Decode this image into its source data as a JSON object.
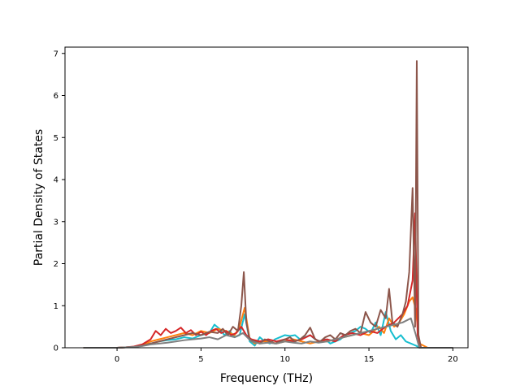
{
  "chart_data": {
    "type": "line",
    "title": "",
    "xlabel": "Frequency (THz)",
    "ylabel": "Partial Density of States",
    "xlim": [
      -3.1,
      20.9
    ],
    "ylim": [
      0,
      7.15
    ],
    "xticks": [
      0,
      5,
      10,
      15,
      20
    ],
    "yticks": [
      0,
      1,
      2,
      3,
      4,
      5,
      6,
      7
    ],
    "grid": false,
    "legend": "none",
    "series": [
      {
        "color": "#17becf",
        "x": [
          -2,
          0,
          0.5,
          1,
          1.5,
          2,
          2.5,
          3,
          3.5,
          4,
          4.5,
          5,
          5.5,
          5.8,
          6.1,
          6.4,
          6.7,
          7,
          7.3,
          7.6,
          7.9,
          8.2,
          8.5,
          8.8,
          9.1,
          9.4,
          9.7,
          10,
          10.3,
          10.6,
          10.9,
          11.2,
          11.5,
          11.8,
          12.1,
          12.4,
          12.7,
          13,
          13.3,
          13.6,
          13.9,
          14.2,
          14.5,
          14.8,
          15.1,
          15.4,
          15.7,
          16,
          16.3,
          16.6,
          16.9,
          17.2,
          17.5,
          17.8,
          18,
          18.5,
          20
        ],
        "y": [
          0,
          0,
          0.01,
          0.02,
          0.05,
          0.1,
          0.15,
          0.18,
          0.2,
          0.25,
          0.22,
          0.3,
          0.35,
          0.55,
          0.45,
          0.3,
          0.4,
          0.25,
          0.3,
          0.8,
          0.15,
          0.05,
          0.25,
          0.15,
          0.1,
          0.2,
          0.25,
          0.3,
          0.28,
          0.3,
          0.2,
          0.25,
          0.3,
          0.2,
          0.15,
          0.2,
          0.1,
          0.15,
          0.2,
          0.3,
          0.35,
          0.4,
          0.5,
          0.45,
          0.35,
          0.6,
          0.3,
          0.85,
          0.4,
          0.2,
          0.3,
          0.15,
          0.1,
          0.05,
          0,
          0,
          0
        ]
      },
      {
        "color": "#ff7f0e",
        "x": [
          -2,
          0,
          0.5,
          1,
          1.5,
          2,
          2.5,
          3,
          3.5,
          4,
          4.5,
          5,
          5.5,
          6,
          6.5,
          7,
          7.3,
          7.6,
          7.9,
          8.2,
          8.5,
          9,
          9.5,
          10,
          10.5,
          11,
          11.5,
          12,
          12.5,
          13,
          13.5,
          14,
          14.5,
          15,
          15.3,
          15.6,
          15.9,
          16.2,
          16.5,
          16.8,
          17.1,
          17.4,
          17.6,
          17.8,
          18,
          18.5,
          20
        ],
        "y": [
          0,
          0,
          0.01,
          0.02,
          0.05,
          0.15,
          0.2,
          0.25,
          0.3,
          0.35,
          0.3,
          0.4,
          0.35,
          0.45,
          0.4,
          0.3,
          0.5,
          0.95,
          0.2,
          0.1,
          0.15,
          0.15,
          0.1,
          0.15,
          0.2,
          0.15,
          0.1,
          0.15,
          0.15,
          0.2,
          0.25,
          0.3,
          0.35,
          0.3,
          0.4,
          0.5,
          0.35,
          0.7,
          0.5,
          0.6,
          0.8,
          1.1,
          1.2,
          0.9,
          0.1,
          0,
          0
        ]
      },
      {
        "color": "#d62728",
        "x": [
          -2,
          0,
          0.5,
          1,
          1.5,
          2,
          2.3,
          2.6,
          2.9,
          3.2,
          3.5,
          3.8,
          4.1,
          4.4,
          4.7,
          5,
          5.3,
          5.6,
          5.9,
          6.2,
          6.5,
          6.8,
          7.1,
          7.4,
          7.7,
          8,
          8.5,
          9,
          9.5,
          10,
          10.5,
          11,
          11.5,
          12,
          12.5,
          13,
          13.5,
          14,
          14.5,
          15,
          15.5,
          16,
          16.5,
          17,
          17.3,
          17.6,
          17.75,
          17.9,
          18.1,
          18.5,
          20
        ],
        "y": [
          0,
          0,
          0.01,
          0.03,
          0.08,
          0.2,
          0.4,
          0.3,
          0.45,
          0.35,
          0.4,
          0.48,
          0.35,
          0.42,
          0.3,
          0.38,
          0.3,
          0.4,
          0.45,
          0.35,
          0.4,
          0.3,
          0.35,
          0.5,
          0.3,
          0.2,
          0.15,
          0.2,
          0.15,
          0.2,
          0.15,
          0.2,
          0.3,
          0.15,
          0.2,
          0.15,
          0.3,
          0.35,
          0.3,
          0.4,
          0.35,
          0.5,
          0.6,
          0.8,
          1.0,
          1.6,
          3.2,
          0.3,
          0,
          0,
          0
        ]
      },
      {
        "color": "#8c564b",
        "x": [
          -2,
          0,
          0.5,
          1,
          1.5,
          2,
          2.5,
          3,
          3.5,
          4,
          4.5,
          5,
          5.5,
          6,
          6.3,
          6.6,
          6.9,
          7.2,
          7.4,
          7.55,
          7.7,
          7.9,
          8.2,
          8.5,
          8.8,
          9.1,
          9.4,
          9.7,
          10,
          10.3,
          10.6,
          10.9,
          11.2,
          11.5,
          11.8,
          12.1,
          12.4,
          12.7,
          13,
          13.3,
          13.6,
          13.9,
          14.2,
          14.5,
          14.8,
          15.1,
          15.4,
          15.7,
          16,
          16.2,
          16.4,
          16.7,
          17,
          17.2,
          17.4,
          17.6,
          17.75,
          17.85,
          17.95,
          18.1,
          18.5,
          20
        ],
        "y": [
          0,
          0,
          0.01,
          0.02,
          0.05,
          0.1,
          0.15,
          0.2,
          0.25,
          0.3,
          0.35,
          0.3,
          0.38,
          0.35,
          0.45,
          0.3,
          0.5,
          0.4,
          1.0,
          1.8,
          0.6,
          0.2,
          0.15,
          0.1,
          0.2,
          0.15,
          0.1,
          0.15,
          0.2,
          0.25,
          0.15,
          0.2,
          0.3,
          0.48,
          0.2,
          0.15,
          0.25,
          0.3,
          0.2,
          0.35,
          0.3,
          0.4,
          0.45,
          0.35,
          0.85,
          0.6,
          0.5,
          0.9,
          0.7,
          1.4,
          0.6,
          0.5,
          0.8,
          1.1,
          1.8,
          3.8,
          0.5,
          6.82,
          0.3,
          0,
          0,
          0
        ]
      },
      {
        "color": "#7f7f7f",
        "x": [
          -2,
          0,
          0.5,
          1,
          1.5,
          2,
          2.5,
          3,
          3.5,
          4,
          4.5,
          5,
          5.5,
          6,
          6.5,
          7,
          7.5,
          8,
          8.5,
          9,
          9.5,
          10,
          10.5,
          11,
          11.5,
          12,
          12.5,
          13,
          13.5,
          14,
          14.5,
          15,
          15.5,
          16,
          16.5,
          17,
          17.5,
          17.8,
          18,
          18.5,
          20
        ],
        "y": [
          0,
          0,
          0.01,
          0.02,
          0.04,
          0.08,
          0.1,
          0.12,
          0.15,
          0.18,
          0.2,
          0.22,
          0.25,
          0.2,
          0.3,
          0.25,
          0.35,
          0.15,
          0.1,
          0.12,
          0.1,
          0.15,
          0.12,
          0.1,
          0.15,
          0.12,
          0.15,
          0.2,
          0.25,
          0.3,
          0.35,
          0.4,
          0.45,
          0.5,
          0.55,
          0.6,
          0.7,
          0.3,
          0,
          0,
          0
        ]
      }
    ]
  }
}
